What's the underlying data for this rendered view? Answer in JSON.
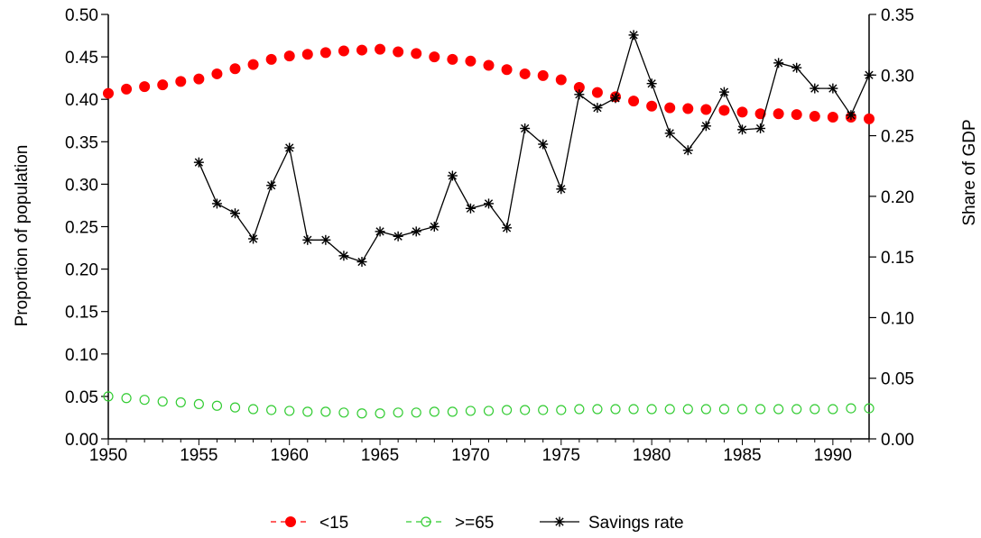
{
  "chart_data": {
    "type": "line",
    "title": "",
    "xlabel": "",
    "ylabel": "Proportion of population",
    "y2label": "Share of GDP",
    "xlim": [
      1950,
      1992
    ],
    "ylim": [
      0,
      0.5
    ],
    "y2lim": [
      0,
      0.35
    ],
    "x_ticks": [
      "1950",
      "1955",
      "1960",
      "1965",
      "1970",
      "1975",
      "1980",
      "1985",
      "1990"
    ],
    "x_tick_values": [
      1950,
      1955,
      1960,
      1965,
      1970,
      1975,
      1980,
      1985,
      1990
    ],
    "y_ticks": [
      "0.00",
      "0.05",
      "0.10",
      "0.15",
      "0.20",
      "0.25",
      "0.30",
      "0.35",
      "0.40",
      "0.45",
      "0.50"
    ],
    "y_tick_values": [
      0,
      0.05,
      0.1,
      0.15,
      0.2,
      0.25,
      0.3,
      0.35,
      0.4,
      0.45,
      0.5
    ],
    "y2_ticks": [
      "0.00",
      "0.05",
      "0.10",
      "0.15",
      "0.20",
      "0.25",
      "0.30",
      "0.35"
    ],
    "y2_tick_values": [
      0,
      0.05,
      0.1,
      0.15,
      0.2,
      0.25,
      0.3,
      0.35
    ],
    "grid": false,
    "legend_position": "bottom",
    "series": [
      {
        "name": "<15",
        "axis": "left",
        "color": "#ff0000",
        "marker": "filled-circle",
        "x": [
          1950,
          1951,
          1952,
          1953,
          1954,
          1955,
          1956,
          1957,
          1958,
          1959,
          1960,
          1961,
          1962,
          1963,
          1964,
          1965,
          1966,
          1967,
          1968,
          1969,
          1970,
          1971,
          1972,
          1973,
          1974,
          1975,
          1976,
          1977,
          1978,
          1979,
          1980,
          1981,
          1982,
          1983,
          1984,
          1985,
          1986,
          1987,
          1988,
          1989,
          1990,
          1991,
          1992
        ],
        "y": [
          0.407,
          0.412,
          0.415,
          0.417,
          0.421,
          0.424,
          0.43,
          0.436,
          0.441,
          0.447,
          0.451,
          0.453,
          0.455,
          0.457,
          0.458,
          0.459,
          0.456,
          0.454,
          0.45,
          0.447,
          0.445,
          0.44,
          0.435,
          0.43,
          0.428,
          0.423,
          0.414,
          0.408,
          0.403,
          0.398,
          0.392,
          0.39,
          0.389,
          0.388,
          0.387,
          0.385,
          0.383,
          0.383,
          0.382,
          0.38,
          0.379,
          0.379,
          0.377
        ]
      },
      {
        "name": ">=65",
        "axis": "left",
        "color": "#33cc33",
        "marker": "open-circle",
        "x": [
          1950,
          1951,
          1952,
          1953,
          1954,
          1955,
          1956,
          1957,
          1958,
          1959,
          1960,
          1961,
          1962,
          1963,
          1964,
          1965,
          1966,
          1967,
          1968,
          1969,
          1970,
          1971,
          1972,
          1973,
          1974,
          1975,
          1976,
          1977,
          1978,
          1979,
          1980,
          1981,
          1982,
          1983,
          1984,
          1985,
          1986,
          1987,
          1988,
          1989,
          1990,
          1991,
          1992
        ],
        "y": [
          0.05,
          0.048,
          0.046,
          0.044,
          0.043,
          0.041,
          0.039,
          0.037,
          0.035,
          0.034,
          0.033,
          0.032,
          0.032,
          0.031,
          0.03,
          0.03,
          0.031,
          0.031,
          0.032,
          0.032,
          0.033,
          0.033,
          0.034,
          0.034,
          0.034,
          0.034,
          0.035,
          0.035,
          0.035,
          0.035,
          0.035,
          0.035,
          0.035,
          0.035,
          0.035,
          0.035,
          0.035,
          0.035,
          0.035,
          0.035,
          0.035,
          0.036,
          0.036
        ]
      },
      {
        "name": "Savings rate",
        "axis": "right",
        "color": "#000000",
        "marker": "star",
        "x": [
          1955,
          1956,
          1957,
          1958,
          1959,
          1960,
          1961,
          1962,
          1963,
          1964,
          1965,
          1966,
          1967,
          1968,
          1969,
          1970,
          1971,
          1972,
          1973,
          1974,
          1975,
          1976,
          1977,
          1978,
          1979,
          1980,
          1981,
          1982,
          1983,
          1984,
          1985,
          1986,
          1987,
          1988,
          1989,
          1990,
          1991,
          1992
        ],
        "y": [
          0.228,
          0.194,
          0.186,
          0.165,
          0.209,
          0.24,
          0.164,
          0.164,
          0.151,
          0.146,
          0.171,
          0.167,
          0.171,
          0.175,
          0.217,
          0.19,
          0.194,
          0.174,
          0.256,
          0.243,
          0.206,
          0.284,
          0.273,
          0.281,
          0.333,
          0.293,
          0.252,
          0.238,
          0.258,
          0.286,
          0.255,
          0.256,
          0.31,
          0.306,
          0.289,
          0.289,
          0.267,
          0.3
        ]
      }
    ]
  }
}
